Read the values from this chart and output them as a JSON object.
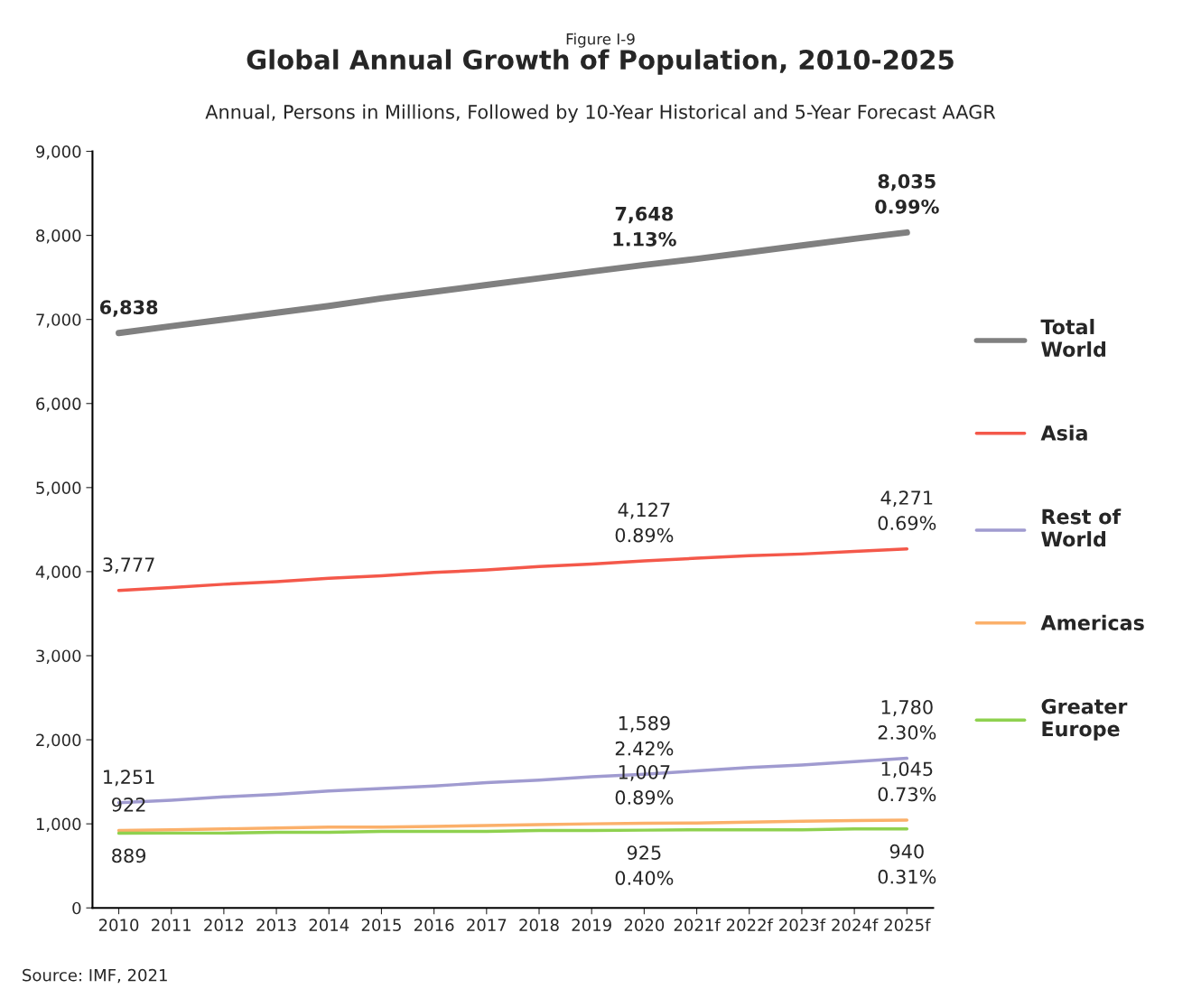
{
  "chart_data": {
    "type": "line",
    "title": "Global Annual Growth of Population, 2010-2025",
    "subtitle": "Annual, Persons in Millions, Followed by 10-Year Historical and 5-Year Forecast AAGR",
    "annotations": [
      "Figure I-9",
      "Source: IMF, 2021"
    ],
    "categories": [
      "2010",
      "2011",
      "2012",
      "2013",
      "2014",
      "2015",
      "2016",
      "2017",
      "2018",
      "2019",
      "2020",
      "2021f",
      "2022f",
      "2023f",
      "2024f",
      "2025f"
    ],
    "ylim": [
      0,
      9000
    ],
    "yticks": [
      0,
      {
        "value": 1000,
        "label": "1,000"
      },
      {
        "value": 2000,
        "label": "2,000"
      },
      {
        "value": 3000,
        "label": "3,000"
      },
      {
        "value": 4000,
        "label": "4,000"
      },
      {
        "value": 5000,
        "label": "5,000"
      },
      {
        "value": 6000,
        "label": "6,000"
      },
      {
        "value": 7000,
        "label": "7,000"
      },
      {
        "value": 8000,
        "label": "8,000"
      },
      {
        "value": 9000,
        "label": "9,000"
      }
    ],
    "grid": false,
    "legend": "right",
    "marker": "none",
    "line_style": "solid",
    "series": [
      {
        "name": "Total\nWorld",
        "color": "#808080",
        "values": [
          6838,
          6920,
          7000,
          7080,
          7160,
          7250,
          7330,
          7410,
          7490,
          7570,
          7648,
          7720,
          7800,
          7880,
          7960,
          8035
        ],
        "value_labels": [
          "6,838",
          null,
          null,
          null,
          null,
          null,
          null,
          null,
          null,
          null,
          "7,648\n1.13%",
          null,
          null,
          null,
          null,
          "8,035\n0.99%"
        ]
      },
      {
        "name": "Asia",
        "color": "#f4584a",
        "values": [
          3777,
          3810,
          3850,
          3880,
          3920,
          3950,
          3990,
          4020,
          4060,
          4090,
          4127,
          4160,
          4190,
          4210,
          4240,
          4271
        ],
        "value_labels": [
          "3,777",
          null,
          null,
          null,
          null,
          null,
          null,
          null,
          null,
          null,
          "4,127\n0.89%",
          null,
          null,
          null,
          null,
          "4,271\n0.69%"
        ]
      },
      {
        "name": "Rest of\nWorld",
        "color": "#a09bd0",
        "values": [
          1251,
          1280,
          1320,
          1350,
          1390,
          1420,
          1450,
          1490,
          1520,
          1560,
          1589,
          1630,
          1670,
          1700,
          1740,
          1780
        ],
        "value_labels": [
          "1,251",
          null,
          null,
          null,
          null,
          null,
          null,
          null,
          null,
          null,
          "1,589\n2.42%",
          null,
          null,
          null,
          null,
          "1,780\n2.30%"
        ]
      },
      {
        "name": "Americas",
        "color": "#fbb06a",
        "values": [
          922,
          930,
          940,
          950,
          960,
          960,
          970,
          980,
          990,
          1000,
          1007,
          1010,
          1020,
          1030,
          1040,
          1045
        ],
        "value_labels": [
          "922",
          null,
          null,
          null,
          null,
          null,
          null,
          null,
          null,
          null,
          "1,007\n0.89%",
          null,
          null,
          null,
          null,
          "1,045\n0.73%"
        ]
      },
      {
        "name": "Greater\nEurope",
        "color": "#8fd14f",
        "values": [
          889,
          890,
          890,
          900,
          900,
          910,
          910,
          910,
          920,
          920,
          925,
          930,
          930,
          930,
          940,
          940
        ],
        "value_labels": [
          "889",
          null,
          null,
          null,
          null,
          null,
          null,
          null,
          null,
          null,
          "925\n0.40%",
          null,
          null,
          null,
          null,
          "940\n0.31%"
        ]
      }
    ]
  }
}
